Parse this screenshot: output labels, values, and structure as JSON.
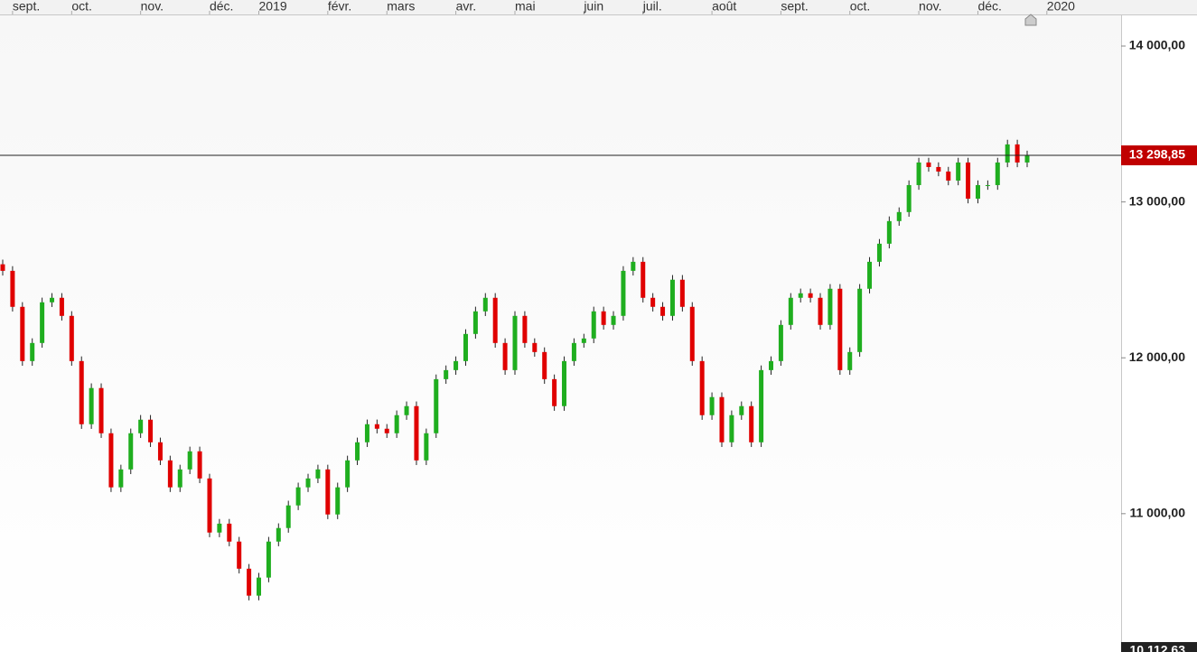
{
  "chart_data": {
    "type": "candlestick",
    "open": [
      12600,
      12558,
      12327,
      11979,
      12095,
      12356,
      12385,
      12269,
      11979,
      11574,
      11806,
      11516,
      11169,
      11284,
      11516,
      11603,
      11458,
      11342,
      11169,
      11284,
      11400,
      11226,
      10879,
      10936,
      10821,
      10647,
      10474,
      10590,
      10821,
      10908,
      11053,
      11169,
      11226,
      11284,
      10995,
      11169,
      11342,
      11458,
      11574,
      11545,
      11516,
      11632,
      11690,
      11342,
      11516,
      11863,
      11921,
      11979,
      12153,
      12298,
      12385,
      12095,
      11921,
      12269,
      12095,
      12037,
      11863,
      11690,
      11979,
      12095,
      12124,
      12298,
      12211,
      12269,
      12558,
      12616,
      12385,
      12327,
      12269,
      12501,
      12327,
      11979,
      11632,
      11748,
      11458,
      11632,
      11690,
      11458,
      11921,
      11979,
      12211,
      12385,
      12414,
      12385,
      12211,
      12443,
      11921,
      12037,
      12443,
      12616,
      12732,
      12877,
      12935,
      13108,
      13253,
      13224,
      13195,
      13137,
      13253,
      13021,
      13108,
      13108,
      13253,
      13369,
      13253
    ],
    "high": [
      12630,
      12588,
      12357,
      12125,
      12386,
      12415,
      12415,
      12299,
      12009,
      11836,
      11836,
      11546,
      11314,
      11546,
      11633,
      11633,
      11488,
      11372,
      11314,
      11430,
      11430,
      11256,
      10966,
      10966,
      10851,
      10677,
      10620,
      10851,
      10938,
      11083,
      11199,
      11256,
      11314,
      11314,
      11199,
      11372,
      11488,
      11604,
      11604,
      11575,
      11662,
      11720,
      11720,
      11546,
      11893,
      11951,
      12009,
      12183,
      12328,
      12415,
      12415,
      12125,
      12299,
      12299,
      12125,
      12067,
      11893,
      12009,
      12125,
      12154,
      12328,
      12328,
      12299,
      12588,
      12646,
      12646,
      12415,
      12357,
      12531,
      12531,
      12357,
      12009,
      11778,
      11778,
      11662,
      11720,
      11720,
      11951,
      12009,
      12241,
      12415,
      12444,
      12444,
      12415,
      12473,
      12473,
      12067,
      12473,
      12646,
      12762,
      12907,
      12965,
      13138,
      13283,
      13283,
      13254,
      13225,
      13283,
      13283,
      13138,
      13138,
      13283,
      13399,
      13399,
      13329
    ],
    "low": [
      12528,
      12297,
      11949,
      11949,
      12065,
      12326,
      12239,
      11949,
      11544,
      11544,
      11486,
      11139,
      11139,
      11254,
      11486,
      11428,
      11312,
      11139,
      11139,
      11254,
      11196,
      10849,
      10849,
      10791,
      10617,
      10444,
      10444,
      10560,
      10791,
      10878,
      11023,
      11139,
      11196,
      10965,
      10965,
      11139,
      11312,
      11428,
      11515,
      11486,
      11486,
      11602,
      11312,
      11312,
      11486,
      11833,
      11891,
      11949,
      12123,
      12268,
      12065,
      11891,
      11891,
      12065,
      12007,
      11833,
      11660,
      11660,
      11949,
      12065,
      12094,
      12181,
      12181,
      12239,
      12528,
      12355,
      12297,
      12239,
      12239,
      12297,
      11949,
      11602,
      11602,
      11428,
      11428,
      11602,
      11428,
      11428,
      11891,
      11949,
      12181,
      12355,
      12355,
      12181,
      12181,
      11891,
      11891,
      12007,
      12413,
      12586,
      12702,
      12847,
      12905,
      13078,
      13194,
      13165,
      13107,
      13107,
      12991,
      12991,
      13078,
      13078,
      13223,
      13223,
      13223
    ],
    "close": [
      12558,
      12327,
      11979,
      12095,
      12356,
      12385,
      12269,
      11979,
      11574,
      11806,
      11516,
      11169,
      11284,
      11516,
      11603,
      11458,
      11342,
      11169,
      11284,
      11400,
      11226,
      10879,
      10936,
      10821,
      10647,
      10474,
      10590,
      10821,
      10908,
      11053,
      11169,
      11226,
      11284,
      10995,
      11169,
      11342,
      11458,
      11574,
      11545,
      11516,
      11632,
      11690,
      11342,
      11516,
      11863,
      11921,
      11979,
      12153,
      12298,
      12385,
      12095,
      11921,
      12269,
      12095,
      12037,
      11863,
      11690,
      11979,
      12095,
      12124,
      12298,
      12211,
      12269,
      12558,
      12616,
      12385,
      12327,
      12269,
      12501,
      12327,
      11979,
      11632,
      11748,
      11458,
      11632,
      11690,
      11458,
      11921,
      11979,
      12211,
      12385,
      12414,
      12385,
      12211,
      12443,
      11921,
      12037,
      12443,
      12616,
      12732,
      12877,
      12935,
      13108,
      13253,
      13224,
      13195,
      13137,
      13253,
      13021,
      13108,
      13108,
      13253,
      13369,
      13253,
      13299
    ],
    "up_color": "#1fae1f",
    "down_color": "#e00000",
    "month_ticks": [
      {
        "value": 1,
        "label": "sept."
      },
      {
        "value": 7,
        "label": "oct."
      },
      {
        "value": 14,
        "label": "nov."
      },
      {
        "value": 21,
        "label": "déc."
      },
      {
        "value": 26,
        "label": "2019"
      },
      {
        "value": 33,
        "label": "févr."
      },
      {
        "value": 39,
        "label": "mars"
      },
      {
        "value": 46,
        "label": "avr."
      },
      {
        "value": 52,
        "label": "mai"
      },
      {
        "value": 59,
        "label": "juin"
      },
      {
        "value": 65,
        "label": "juil."
      },
      {
        "value": 72,
        "label": "août"
      },
      {
        "value": 79,
        "label": "sept."
      },
      {
        "value": 86,
        "label": "oct."
      },
      {
        "value": 93,
        "label": "nov."
      },
      {
        "value": 99,
        "label": "déc."
      },
      {
        "value": 106,
        "label": "2020"
      }
    ],
    "ylim": [
      10112.63,
      14197
    ],
    "yticks": [
      {
        "value": 11000,
        "label": "11 000,00"
      },
      {
        "value": 12000,
        "label": "12 000,00"
      },
      {
        "value": 13000,
        "label": "13 000,00"
      },
      {
        "value": 14000,
        "label": "14 000,00"
      }
    ],
    "last_price": {
      "value": 13298.85,
      "label": "13 298,85"
    },
    "range_low": {
      "value": 10112.63,
      "label": "10 112,63"
    }
  }
}
